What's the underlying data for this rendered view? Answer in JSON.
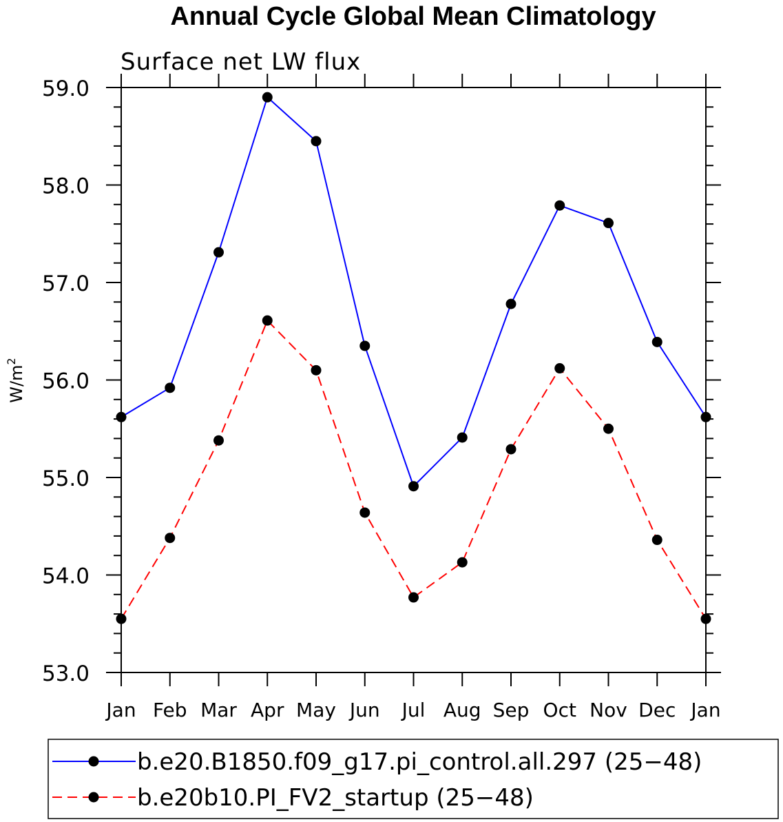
{
  "chart_data": {
    "type": "line",
    "title": "Annual Cycle Global Mean Climatology",
    "subtitle": "Surface net LW flux",
    "ylabel": "W/m",
    "ylabel_superscript": "2",
    "xlabel": "",
    "categories": [
      "Jan",
      "Feb",
      "Mar",
      "Apr",
      "May",
      "Jun",
      "Jul",
      "Aug",
      "Sep",
      "Oct",
      "Nov",
      "Dec",
      "Jan"
    ],
    "ylim": [
      53.0,
      59.0
    ],
    "yticks": [
      "53.0",
      "54.0",
      "55.0",
      "56.0",
      "57.0",
      "58.0",
      "59.0"
    ],
    "grid": false,
    "legend_position": "bottom",
    "series": [
      {
        "name": "b.e20.B1850.f09_g17.pi_control.all.297 (25−48)",
        "color": "#0000ff",
        "line_style": "solid",
        "marker": "filled-circle",
        "values": [
          55.62,
          55.92,
          57.31,
          58.9,
          58.45,
          56.35,
          54.91,
          55.41,
          56.78,
          57.79,
          57.61,
          56.39,
          55.62
        ]
      },
      {
        "name": "b.e20b10.PI_FV2_startup (25−48)",
        "color": "#ff0000",
        "line_style": "dashed",
        "marker": "filled-circle",
        "values": [
          53.55,
          54.38,
          55.38,
          56.61,
          56.1,
          54.64,
          53.77,
          54.13,
          55.29,
          56.12,
          55.5,
          54.36,
          53.55
        ]
      }
    ]
  }
}
